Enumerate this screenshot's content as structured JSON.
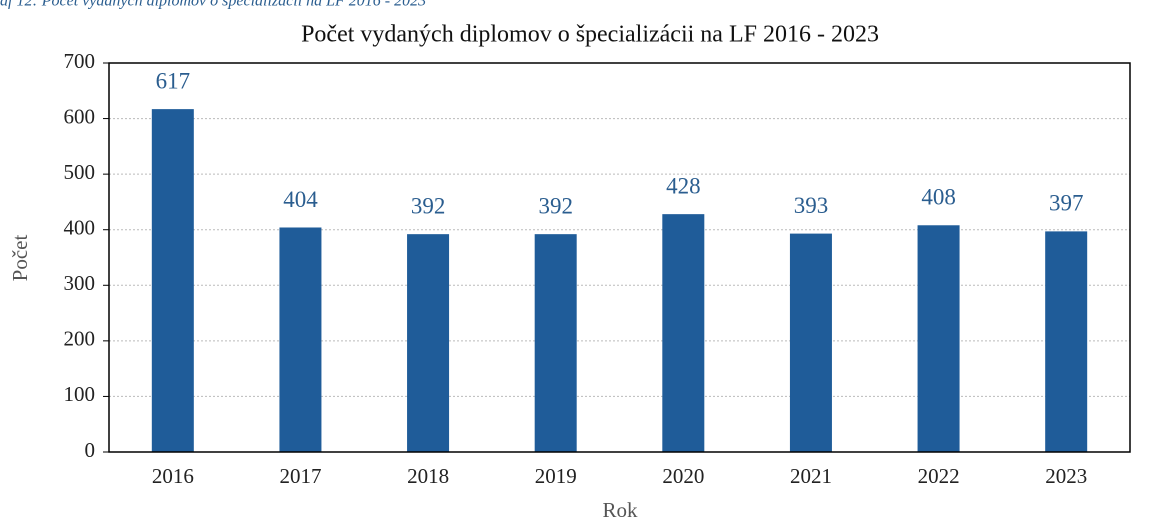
{
  "caption": "af 12: Počet vydaných diplomov o špecializácii na LF 2016 - 2023",
  "chart_data": {
    "type": "bar",
    "title": "Počet vydaných diplomov o špecializácii na LF 2016 - 2023",
    "x_label": "Rok",
    "y_label": "Počet",
    "categories": [
      "2016",
      "2017",
      "2018",
      "2019",
      "2020",
      "2021",
      "2022",
      "2023"
    ],
    "values": [
      617,
      404,
      392,
      392,
      428,
      393,
      408,
      397
    ],
    "color": "#1f5c99",
    "ylim": [
      0,
      700
    ],
    "yticks": [
      0,
      100,
      200,
      300,
      400,
      500,
      600,
      700
    ],
    "grid": true
  }
}
